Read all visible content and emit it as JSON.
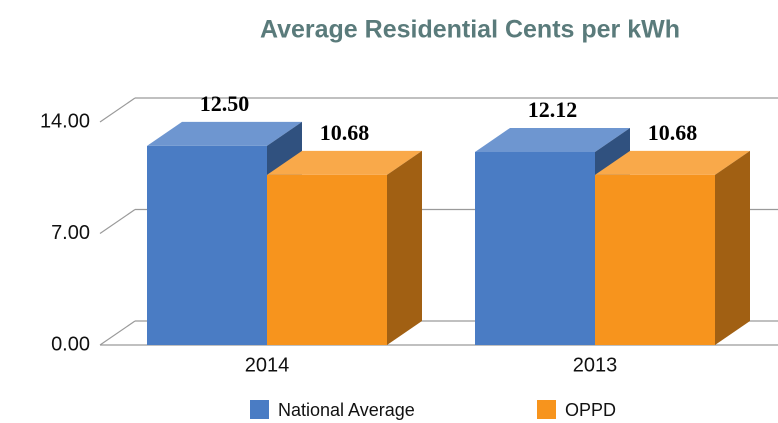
{
  "chart_data": {
    "type": "bar3d",
    "title": "Average Residential Cents per kWh",
    "categories": [
      "2014",
      "2013"
    ],
    "series": [
      {
        "name": "National Average",
        "color": "#4a7cc4",
        "values": [
          12.5,
          12.12
        ],
        "value_labels": [
          "12.50",
          "12.12"
        ]
      },
      {
        "name": "OPPD",
        "color": "#f7941d",
        "values": [
          10.68,
          10.68
        ],
        "value_labels": [
          "10.68",
          "10.68"
        ]
      }
    ],
    "ylim": [
      0,
      14
    ],
    "yticks": [
      {
        "value": 0,
        "label": "0.00"
      },
      {
        "value": 7,
        "label": "7.00"
      },
      {
        "value": 14,
        "label": "14.00"
      }
    ],
    "grid": true
  }
}
